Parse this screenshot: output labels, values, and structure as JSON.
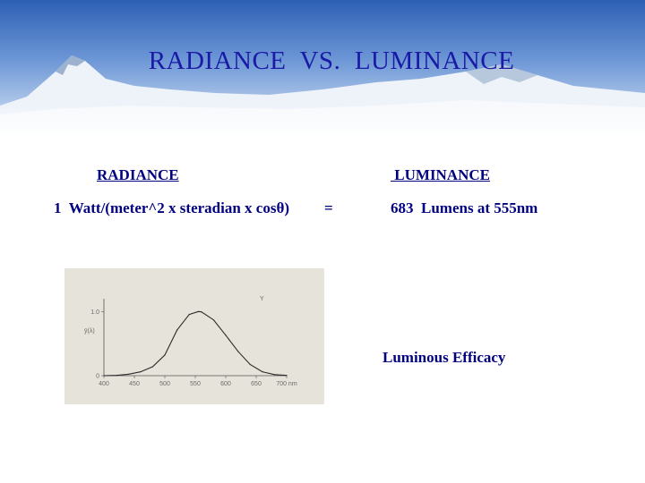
{
  "slide": {
    "title": "RADIANCE  VS.  LUMINANCE",
    "radiance_heading": "RADIANCE",
    "luminance_heading": " LUMINANCE",
    "radiance_value": "1  Watt/(meter^2 x steradian x cosθ)",
    "equals": "=",
    "luminance_value": "683  Lumens at 555nm",
    "efficacy_label": "Luminous Efficacy"
  },
  "chart_data": {
    "type": "line",
    "title": "",
    "series_label": "Y",
    "ylabel": "ȳ(λ)",
    "xlabel": "",
    "x_ticks": [
      "400",
      "450",
      "500",
      "550",
      "600",
      "650",
      "700 nm"
    ],
    "y_ticks": [
      "0",
      "1.0"
    ],
    "xlim": [
      400,
      700
    ],
    "ylim": [
      0,
      1.2
    ],
    "x": [
      400,
      420,
      440,
      460,
      480,
      500,
      520,
      540,
      555,
      560,
      580,
      600,
      620,
      640,
      660,
      680,
      700
    ],
    "y": [
      0.0004,
      0.004,
      0.023,
      0.06,
      0.139,
      0.323,
      0.71,
      0.954,
      1.0,
      0.995,
      0.87,
      0.631,
      0.381,
      0.175,
      0.061,
      0.017,
      0.004
    ]
  }
}
